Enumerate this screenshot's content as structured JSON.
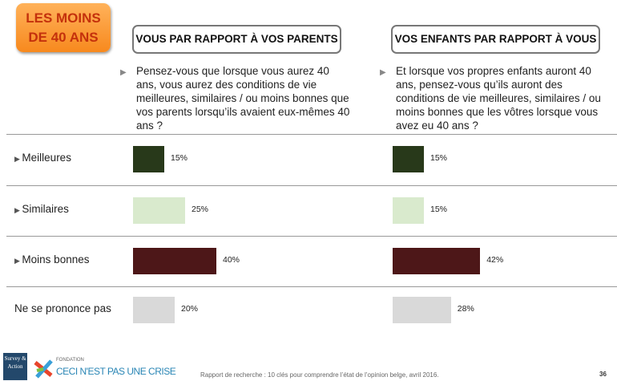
{
  "badge": "LES MOINS DE 40 ANS",
  "badge_lines": [
    "LES MOINS",
    "DE 40 ANS"
  ],
  "chart_data": [
    {
      "type": "bar",
      "title": "VOUS PAR RAPPORT À VOS PARENTS",
      "question": "Pensez-vous que lorsque vous aurez 40 ans, vous aurez des conditions de vie meilleures, similaires / ou moins bonnes que vos parents lorsqu’ils avaient eux-mêmes 40 ans ?",
      "categories": [
        "Meilleures",
        "Similaires",
        "Moins bonnes",
        "Ne se prononce pas"
      ],
      "values": [
        15,
        25,
        40,
        20
      ],
      "labels": [
        "15%",
        "25%",
        "40%",
        "20%"
      ]
    },
    {
      "type": "bar",
      "title": "VOS ENFANTS PAR RAPPORT À VOUS",
      "question": "Et lorsque vos propres enfants auront 40 ans, pensez-vous qu’ils auront des conditions de vie meilleures, similaires / ou moins bonnes que les vôtres lorsque vous avez eu 40 ans ?",
      "categories": [
        "Meilleures",
        "Similaires",
        "Moins bonnes",
        "Ne se prononce pas"
      ],
      "values": [
        15,
        15,
        42,
        28
      ],
      "labels": [
        "15%",
        "15%",
        "42%",
        "28%"
      ]
    }
  ],
  "row_labels": [
    "Meilleures",
    "Similaires",
    "Moins bonnes",
    "Ne se prononce pas"
  ],
  "row_arrows": [
    true,
    true,
    true,
    false
  ],
  "colors": [
    "#28391a",
    "#d9eacd",
    "#4d1718",
    "#d9d9d9"
  ],
  "footer": {
    "text": "Rapport de recherche : 10 clés pour comprendre l’état de l’opinion belge, avril 2016.",
    "page": "36",
    "logo1": "Survey & Action",
    "logo2_small": "FONDATION",
    "logo2": "CECI N'EST PAS UNE CRISE"
  }
}
